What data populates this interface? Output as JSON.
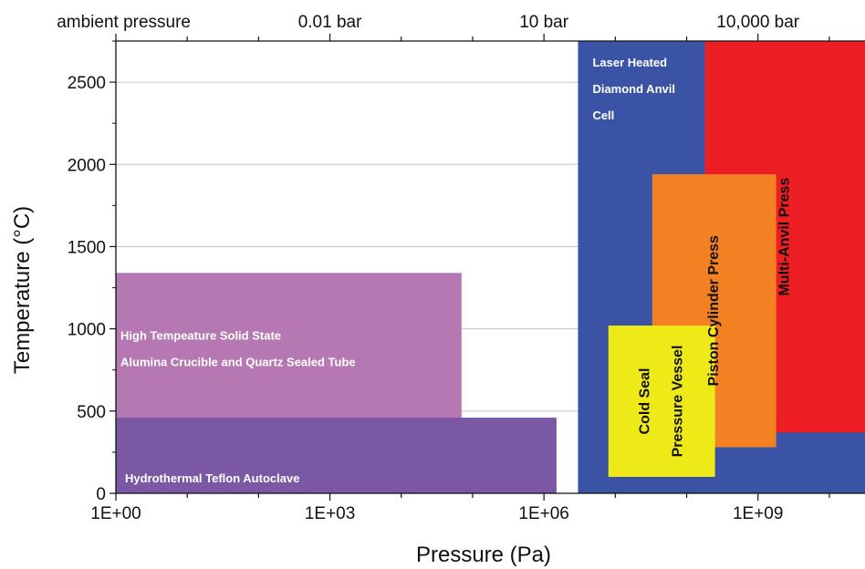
{
  "chart_data": {
    "type": "area",
    "xlabel": "Pressure (Pa)",
    "ylabel": "Temperature (°C)",
    "x_scale": "log",
    "xlim": [
      1,
      31622776601
    ],
    "ylim": [
      0,
      2750
    ],
    "grid": "horizontal",
    "x_ticks": [
      {
        "value": 1,
        "label": "1E+00"
      },
      {
        "value": 1000,
        "label": "1E+03"
      },
      {
        "value": 1000000,
        "label": "1E+06"
      },
      {
        "value": 1000000000,
        "label": "1E+09"
      }
    ],
    "y_ticks": [
      0,
      500,
      1000,
      1500,
      2000,
      2500
    ],
    "top_axis": [
      {
        "value": 1,
        "label": "ambient pressure"
      },
      {
        "value": 1000,
        "label": "0.01 bar"
      },
      {
        "value": 1000000,
        "label": "10 bar"
      },
      {
        "value": 1000000000,
        "label": "10,000 bar"
      }
    ],
    "regions": [
      {
        "label": "Laser Heated Diamond Anvil Cell",
        "lines": [
          "Laser Heated",
          "Diamond Anvil",
          "Cell"
        ],
        "x_min": 3000000,
        "x_max": 31622776601,
        "y_min": 0,
        "y_max": 2750,
        "color": "#3a53a4",
        "text_color": "#ffffff",
        "orientation": "horizontal"
      },
      {
        "label": "Multi-Anvil Press",
        "lines": [
          "Multi-Anvil Press"
        ],
        "x_min": 180000000,
        "x_max": 31622776601,
        "y_min": 370,
        "y_max": 2750,
        "color": "#ed1f24",
        "text_color": "#111111",
        "orientation": "vertical"
      },
      {
        "label": "Piston Cylinder Press",
        "lines": [
          "Piston Cylinder Press"
        ],
        "x_min": 33000000,
        "x_max": 1800000000,
        "y_min": 280,
        "y_max": 1940,
        "color": "#f48024",
        "text_color": "#111111",
        "orientation": "vertical"
      },
      {
        "label": "Cold Seal Pressure Vessel",
        "lines": [
          "Cold Seal",
          "Pressure Vessel"
        ],
        "x_min": 8000000,
        "x_max": 250000000,
        "y_min": 100,
        "y_max": 1020,
        "color": "#eeea18",
        "text_color": "#111111",
        "orientation": "vertical"
      },
      {
        "label": "High Tempeature Solid State Alumina Crucible and Quartz Sealed Tube",
        "lines": [
          "High Tempeature Solid State",
          "Alumina Crucible and Quartz Sealed Tube"
        ],
        "x_min": 1,
        "x_max": 70000,
        "y_min": 0,
        "y_max": 1340,
        "color": "#b578b3",
        "text_color": "#ffffff",
        "orientation": "horizontal"
      },
      {
        "label": "Hydrothermal Teflon Autoclave",
        "lines": [
          "Hydrothermal Teflon Autoclave"
        ],
        "x_min": 1,
        "x_max": 1500000,
        "y_min": 0,
        "y_max": 460,
        "color": "#7b58a4",
        "text_color": "#ffffff",
        "orientation": "horizontal"
      }
    ]
  }
}
